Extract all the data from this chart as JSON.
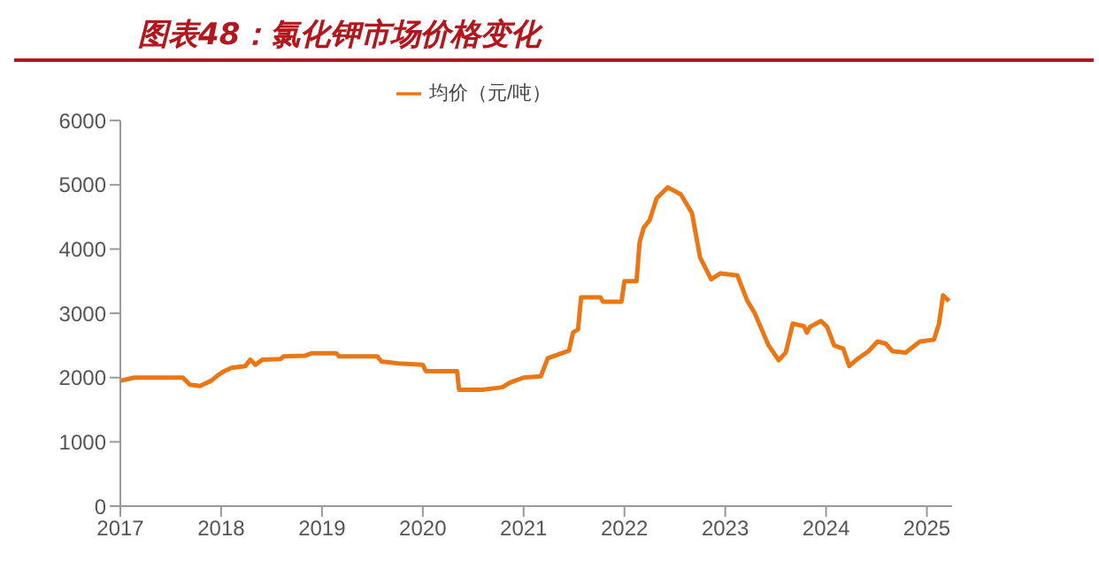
{
  "chart_data": {
    "type": "line",
    "title": "图表48：氯化钾市场价格变化",
    "legend": "top",
    "series": [
      {
        "name": "均价（元/吨）",
        "color": "#eb7614",
        "x": [
          2017.0,
          2017.14,
          2017.62,
          2017.69,
          2017.79,
          2017.9,
          2017.97,
          2018.03,
          2018.1,
          2018.24,
          2018.29,
          2018.34,
          2018.41,
          2018.59,
          2018.62,
          2018.83,
          2018.9,
          2019.14,
          2019.17,
          2019.55,
          2019.59,
          2019.76,
          2020.0,
          2020.03,
          2020.34,
          2020.36,
          2020.59,
          2020.79,
          2020.86,
          2020.93,
          2021.0,
          2021.17,
          2021.24,
          2021.38,
          2021.45,
          2021.49,
          2021.54,
          2021.57,
          2021.76,
          2021.79,
          2021.97,
          2022.0,
          2022.12,
          2022.15,
          2022.19,
          2022.25,
          2022.32,
          2022.43,
          2022.56,
          2022.67,
          2022.75,
          2022.86,
          2022.95,
          2023.12,
          2023.22,
          2023.29,
          2023.43,
          2023.53,
          2023.6,
          2023.67,
          2023.78,
          2023.81,
          2023.84,
          2023.95,
          2024.01,
          2024.08,
          2024.17,
          2024.23,
          2024.32,
          2024.42,
          2024.51,
          2024.59,
          2024.66,
          2024.79,
          2024.93,
          2025.07,
          2025.12,
          2025.16,
          2025.22
        ],
        "values": [
          1950,
          2000,
          2000,
          1890,
          1870,
          1950,
          2040,
          2100,
          2150,
          2180,
          2280,
          2200,
          2280,
          2290,
          2330,
          2340,
          2380,
          2380,
          2330,
          2330,
          2250,
          2220,
          2200,
          2100,
          2100,
          1810,
          1810,
          1850,
          1920,
          1960,
          2000,
          2020,
          2300,
          2380,
          2420,
          2700,
          2750,
          3250,
          3250,
          3180,
          3180,
          3500,
          3500,
          4100,
          4330,
          4450,
          4790,
          4960,
          4850,
          4560,
          3870,
          3530,
          3620,
          3590,
          3190,
          3010,
          2500,
          2270,
          2390,
          2840,
          2800,
          2700,
          2790,
          2880,
          2790,
          2500,
          2450,
          2180,
          2300,
          2410,
          2560,
          2530,
          2410,
          2390,
          2560,
          2590,
          2840,
          3280,
          3190
        ]
      }
    ],
    "xlim": [
      2017,
      2025.25
    ],
    "xticks": [
      2017,
      2018,
      2019,
      2020,
      2021,
      2022,
      2023,
      2024,
      2025
    ],
    "ylim": [
      0,
      6000
    ],
    "yticks": [
      0,
      1000,
      2000,
      3000,
      4000,
      5000,
      6000
    ],
    "grid": false
  }
}
